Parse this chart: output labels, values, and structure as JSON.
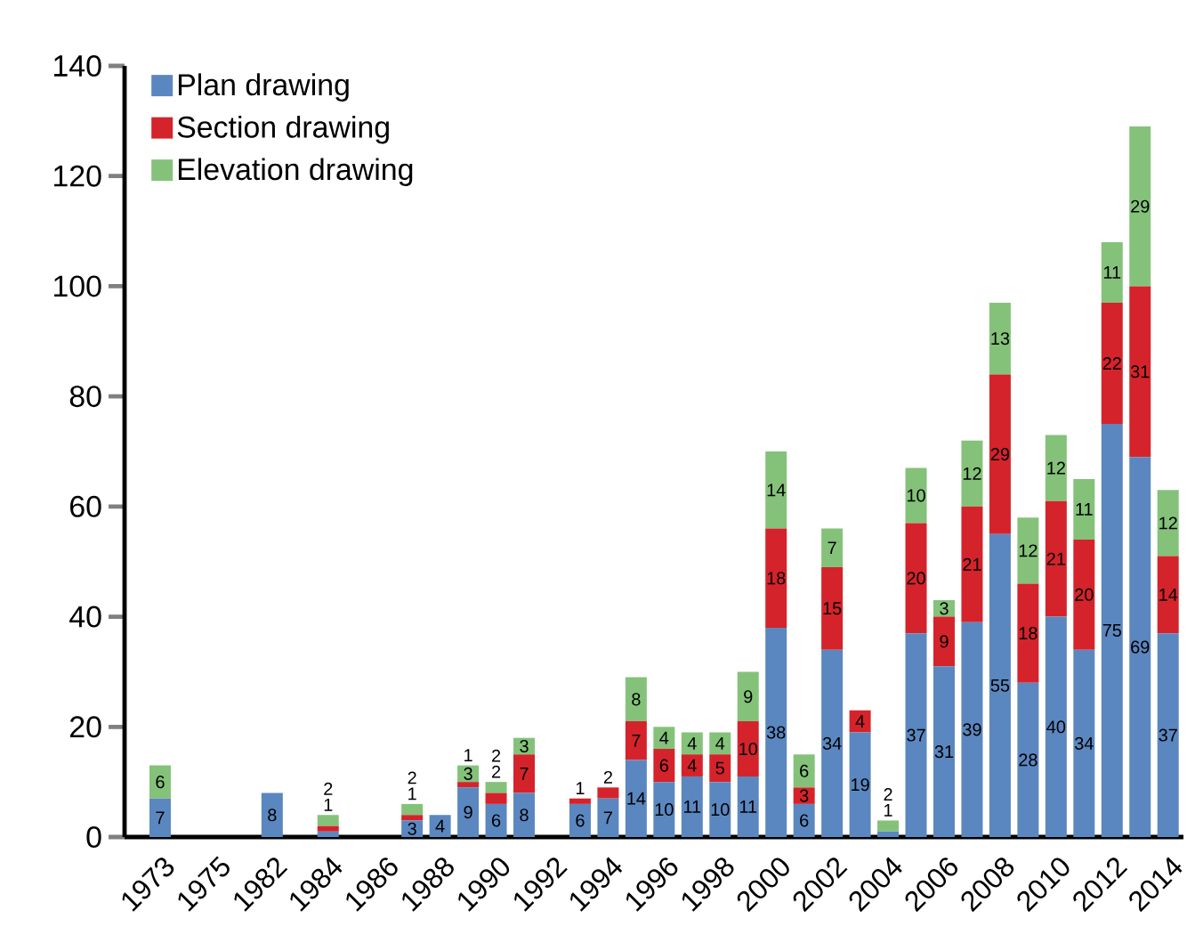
{
  "chart_data": {
    "type": "bar",
    "stacked": true,
    "legend": "top left",
    "categories": [
      "1973",
      null,
      "1975",
      null,
      "1982",
      null,
      "1984",
      null,
      "1986",
      null,
      "1988",
      null,
      "1990",
      null,
      "1992",
      null,
      "1994",
      null,
      "1996",
      null,
      "1998",
      null,
      "2000",
      null,
      "2002",
      null,
      "2004",
      null,
      "2006",
      null,
      "2008",
      null,
      "2010",
      null,
      "2012",
      null,
      "2014"
    ],
    "ylim": [
      0,
      140
    ],
    "yticks": [
      0,
      20,
      40,
      60,
      80,
      100,
      120,
      140
    ],
    "series": [
      {
        "name": "Plan drawing",
        "color": "#5b87c0",
        "values": [
          7,
          null,
          null,
          null,
          8,
          null,
          1,
          null,
          null,
          3,
          4,
          9,
          6,
          8,
          null,
          6,
          7,
          14,
          10,
          11,
          10,
          11,
          38,
          6,
          34,
          19,
          1,
          37,
          31,
          39,
          55,
          28,
          40,
          34,
          75,
          69,
          37
        ],
        "value_labels": [
          "7",
          null,
          null,
          null,
          "8",
          null,
          "1",
          null,
          null,
          "3",
          "4",
          "9",
          "6",
          "8",
          null,
          "6",
          "7",
          "14",
          "10",
          "11",
          "10",
          "11",
          "38",
          "6",
          "34",
          "19",
          "1",
          "37",
          "31",
          "39",
          "55",
          "28",
          "40",
          "34",
          "75",
          "69",
          "37"
        ]
      },
      {
        "name": "Section drawing",
        "color": "#d5232b",
        "values": [
          null,
          null,
          null,
          null,
          null,
          null,
          1,
          null,
          null,
          1,
          null,
          1,
          2,
          7,
          null,
          1,
          2,
          7,
          6,
          4,
          5,
          10,
          18,
          3,
          15,
          4,
          null,
          20,
          9,
          21,
          29,
          18,
          21,
          20,
          22,
          31,
          14
        ],
        "value_labels": [
          null,
          null,
          null,
          null,
          null,
          null,
          null,
          null,
          null,
          "1",
          null,
          "1",
          "2",
          "7",
          null,
          "1",
          "2",
          "7",
          "6",
          "4",
          "5",
          "10",
          "18",
          "3",
          "15",
          "4",
          null,
          "20",
          "9",
          "21",
          "29",
          "18",
          "21",
          "20",
          "22",
          "31",
          "14"
        ]
      },
      {
        "name": "Elevation drawing",
        "color": "#84c27a",
        "values": [
          6,
          null,
          null,
          null,
          null,
          null,
          2,
          null,
          null,
          2,
          null,
          3,
          2,
          3,
          null,
          null,
          null,
          8,
          4,
          4,
          4,
          9,
          14,
          6,
          7,
          null,
          2,
          10,
          3,
          12,
          13,
          12,
          12,
          11,
          11,
          29,
          12
        ],
        "value_labels": [
          "6",
          null,
          null,
          null,
          null,
          null,
          "2",
          null,
          null,
          "2",
          null,
          "3",
          "2",
          "3",
          null,
          null,
          null,
          "8",
          "4",
          "4",
          "4",
          "9",
          "14",
          "6",
          "7",
          null,
          "2",
          "10",
          "3",
          "12",
          "13",
          "12",
          "12",
          "11",
          "11",
          "29",
          "12"
        ]
      }
    ]
  }
}
